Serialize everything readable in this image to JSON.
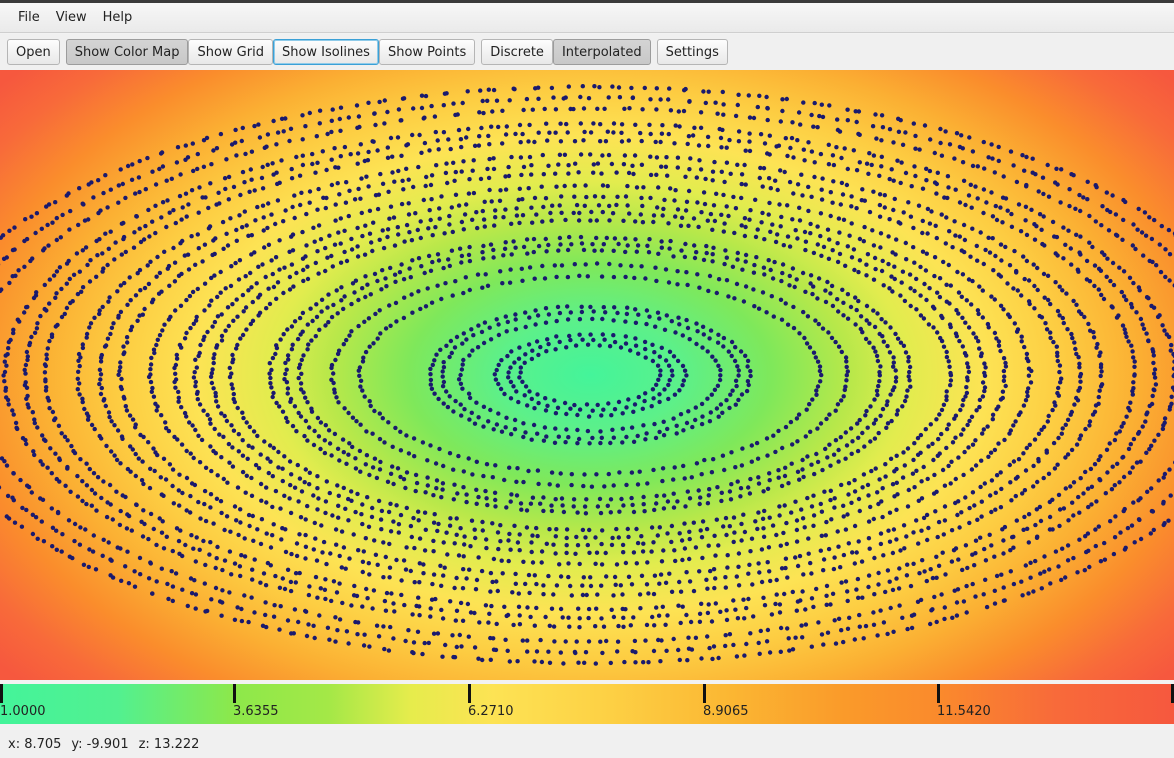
{
  "menu": {
    "items": [
      "File",
      "View",
      "Help"
    ]
  },
  "toolbar": {
    "open": "Open",
    "show_color_map": "Show Color Map",
    "show_grid": "Show Grid",
    "show_isolines": "Show Isolines",
    "show_points": "Show Points",
    "discrete": "Discrete",
    "interpolated": "Interpolated",
    "settings": "Settings",
    "toggles": {
      "show_color_map": true,
      "show_grid": false,
      "show_isolines": false,
      "show_points": false,
      "discrete": false,
      "interpolated": true
    }
  },
  "colors": {
    "low": "#44f49a",
    "mid": "#fde354",
    "high": "#f6583e",
    "points": "#1a1a6e"
  },
  "colorbar": {
    "ticks": [
      "1.0000",
      "3.6355",
      "6.2710",
      "8.9065",
      "11.5420"
    ]
  },
  "status": {
    "x": "x: 8.705",
    "y": "y: -9.901",
    "z": "z: 13.222"
  }
}
